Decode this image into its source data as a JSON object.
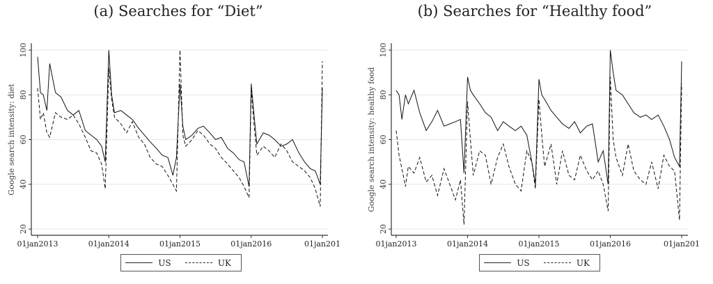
{
  "chart_data": [
    {
      "type": "line",
      "title": "(a) Searches for “Diet”",
      "xlabel": "",
      "ylabel": "Google search intensity: diet",
      "ylim": [
        20,
        100
      ],
      "yticks": [
        "20",
        "40",
        "60",
        "80",
        "100"
      ],
      "xticks": [
        "01jan2013",
        "01jan2014",
        "01jan2015",
        "01jan2016",
        "01jan201"
      ],
      "xlim": [
        2013.0,
        2017.0
      ],
      "grid": true,
      "legend": {
        "position": "bottom",
        "entries": [
          "US",
          "UK"
        ]
      },
      "x": [
        2013.0,
        2013.04,
        2013.08,
        2013.13,
        2013.17,
        2013.25,
        2013.33,
        2013.42,
        2013.5,
        2013.58,
        2013.67,
        2013.75,
        2013.83,
        2013.9,
        2013.95,
        2014.0,
        2014.04,
        2014.08,
        2014.17,
        2014.25,
        2014.33,
        2014.42,
        2014.5,
        2014.58,
        2014.67,
        2014.75,
        2014.83,
        2014.9,
        2014.95,
        2015.0,
        2015.04,
        2015.08,
        2015.17,
        2015.25,
        2015.33,
        2015.42,
        2015.5,
        2015.58,
        2015.67,
        2015.75,
        2015.83,
        2015.9,
        2015.97,
        2016.0,
        2016.04,
        2016.08,
        2016.17,
        2016.25,
        2016.33,
        2016.42,
        2016.5,
        2016.58,
        2016.67,
        2016.75,
        2016.83,
        2016.9,
        2016.97,
        2017.0
      ],
      "series": [
        {
          "name": "US",
          "style": "solid",
          "values": [
            97,
            81,
            80,
            73,
            94,
            81,
            79,
            73,
            71,
            73,
            64,
            62,
            60,
            57,
            50,
            100,
            80,
            72,
            73,
            71,
            69,
            65,
            62,
            59,
            56,
            53,
            52,
            44,
            52,
            85,
            66,
            60,
            62,
            65,
            66,
            63,
            60,
            61,
            56,
            54,
            51,
            50,
            39,
            85,
            71,
            58,
            63,
            62,
            60,
            57,
            58,
            60,
            54,
            50,
            47,
            46,
            40,
            83
          ]
        },
        {
          "name": "UK",
          "style": "dashed",
          "values": [
            83,
            69,
            72,
            63,
            61,
            72,
            70,
            69,
            71,
            67,
            61,
            55,
            54,
            49,
            38,
            92,
            78,
            70,
            67,
            63,
            68,
            61,
            58,
            52,
            49,
            48,
            44,
            40,
            37,
            100,
            62,
            57,
            60,
            64,
            62,
            58,
            56,
            52,
            49,
            46,
            43,
            39,
            34,
            82,
            67,
            53,
            57,
            55,
            52,
            58,
            55,
            50,
            48,
            46,
            43,
            38,
            30,
            95
          ]
        }
      ]
    },
    {
      "type": "line",
      "title": "(b) Searches for “Healthy food”",
      "xlabel": "",
      "ylabel": "Google search intensity: healthy food",
      "ylim": [
        20,
        100
      ],
      "yticks": [
        "20",
        "40",
        "60",
        "80",
        "100"
      ],
      "xticks": [
        "01jan2013",
        "01jan2014",
        "01jan2015",
        "01jan2016",
        "01jan201"
      ],
      "xlim": [
        2013.0,
        2017.0
      ],
      "grid": true,
      "legend": {
        "position": "bottom",
        "entries": [
          "US",
          "UK"
        ]
      },
      "x": [
        2013.0,
        2013.04,
        2013.08,
        2013.13,
        2013.17,
        2013.25,
        2013.33,
        2013.42,
        2013.5,
        2013.58,
        2013.67,
        2013.75,
        2013.83,
        2013.9,
        2013.95,
        2014.0,
        2014.04,
        2014.08,
        2014.17,
        2014.25,
        2014.33,
        2014.42,
        2014.5,
        2014.58,
        2014.67,
        2014.75,
        2014.83,
        2014.9,
        2014.95,
        2015.0,
        2015.04,
        2015.08,
        2015.17,
        2015.25,
        2015.33,
        2015.42,
        2015.5,
        2015.58,
        2015.67,
        2015.75,
        2015.83,
        2015.9,
        2015.97,
        2016.0,
        2016.04,
        2016.08,
        2016.17,
        2016.25,
        2016.33,
        2016.42,
        2016.5,
        2016.58,
        2016.67,
        2016.75,
        2016.83,
        2016.9,
        2016.97,
        2017.0
      ],
      "series": [
        {
          "name": "US",
          "style": "solid",
          "values": [
            82,
            80,
            69,
            80,
            76,
            82,
            72,
            64,
            68,
            73,
            66,
            67,
            68,
            69,
            45,
            88,
            82,
            80,
            76,
            72,
            70,
            64,
            68,
            66,
            64,
            66,
            62,
            50,
            40,
            87,
            80,
            78,
            73,
            70,
            67,
            65,
            68,
            63,
            66,
            67,
            50,
            55,
            40,
            100,
            90,
            82,
            80,
            76,
            72,
            70,
            71,
            69,
            71,
            66,
            60,
            52,
            48,
            95
          ]
        },
        {
          "name": "UK",
          "style": "dashed",
          "values": [
            64,
            53,
            47,
            39,
            48,
            45,
            52,
            41,
            44,
            35,
            47,
            40,
            33,
            42,
            22,
            77,
            60,
            44,
            55,
            53,
            40,
            52,
            58,
            48,
            40,
            37,
            55,
            50,
            38,
            78,
            62,
            48,
            58,
            40,
            55,
            44,
            42,
            53,
            46,
            42,
            46,
            40,
            28,
            88,
            60,
            52,
            44,
            58,
            46,
            42,
            40,
            50,
            38,
            53,
            48,
            46,
            24,
            85
          ]
        }
      ]
    }
  ]
}
